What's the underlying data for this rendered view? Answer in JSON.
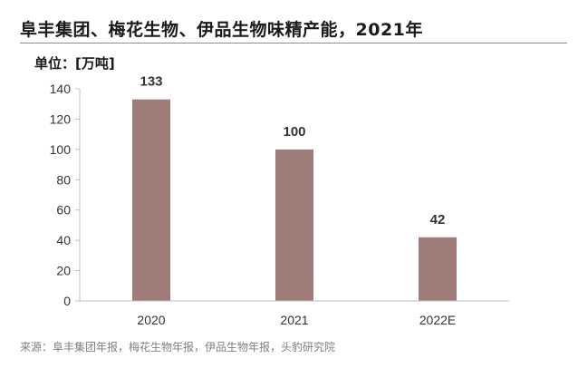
{
  "header": {
    "title": "阜丰集团、梅花生物、伊品生物味精产能，2021年",
    "unit": "单位：[万吨]"
  },
  "footer": {
    "source": "来源：阜丰集团年报，梅花生物年报，伊品生物年报，头豹研究院"
  },
  "colors": {
    "bar": "#a07c78",
    "axis": "#bfbfbf",
    "text": "#333333"
  },
  "chart_data": {
    "type": "bar",
    "title": "阜丰集团、梅花生物、伊品生物味精产能，2021年",
    "ylabel": "单位：[万吨]",
    "xlabel": "",
    "categories": [
      "2020",
      "2021",
      "2022E"
    ],
    "values": [
      133,
      100,
      42
    ],
    "ylim": [
      0,
      140
    ],
    "yticks": [
      0,
      20,
      40,
      60,
      80,
      100,
      120,
      140
    ],
    "grid": false,
    "data_labels": true
  }
}
